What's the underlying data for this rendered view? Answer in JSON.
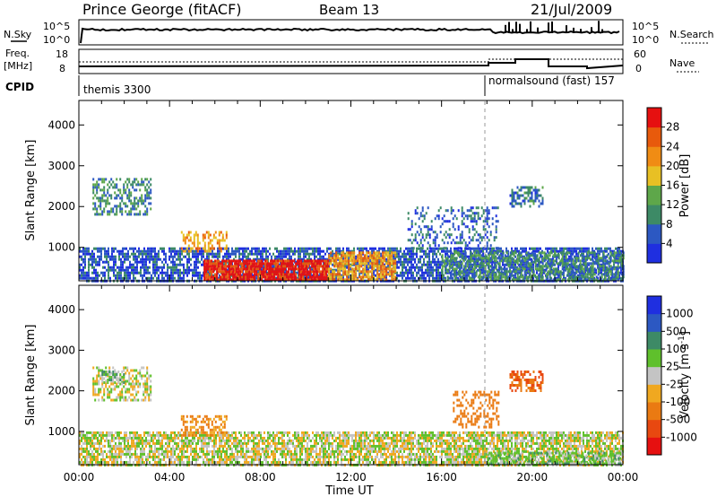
{
  "header": {
    "station": "Prince George (fitACF)",
    "beam": "Beam 13",
    "date": "21/Jul/2009"
  },
  "side_labels": {
    "nsky": "N.Sky",
    "nsearch": "N.Search",
    "freq_top": "Freq.",
    "freq_unit": "[MHz]",
    "nave": "Nave",
    "cpid": "CPID"
  },
  "strip_ticks": {
    "noise_left": [
      "10^5",
      "10^0"
    ],
    "noise_right": [
      "10^5",
      "10^0"
    ],
    "freq_left": [
      "18",
      "8"
    ],
    "nave_right": [
      "60",
      "0"
    ]
  },
  "cpid": {
    "segments": [
      {
        "label": "themis 3300",
        "start_hour": 0.0
      },
      {
        "label": "normalsound (fast) 157",
        "start_hour": 18.0
      }
    ]
  },
  "colors": {
    "power_scale": [
      "#1f2fe0",
      "#2c58c2",
      "#3d8a66",
      "#5ea74a",
      "#e8c024",
      "#f08c14",
      "#e85a0c",
      "#e61010"
    ],
    "velocity_scale": [
      "#1f2fe0",
      "#2c58c2",
      "#3d8a66",
      "#5fc02c",
      "#c4c4c4",
      "#f0a820",
      "#ea7a12",
      "#e84810",
      "#e61010"
    ]
  },
  "chart_data": [
    {
      "type": "heatmap",
      "name": "Power",
      "xlabel": "",
      "ylabel": "Slant Range [km]",
      "x_unit": "hours UT",
      "xlim": [
        0,
        24
      ],
      "ylim": [
        180,
        4600
      ],
      "yticks": [
        "1000",
        "2000",
        "3000",
        "4000"
      ],
      "colorbar": {
        "label": "Power [dB]",
        "ticks": [
          "4",
          "8",
          "12",
          "16",
          "20",
          "24",
          "28"
        ],
        "range": [
          0,
          30
        ]
      },
      "regions": [
        {
          "t": [
            0.0,
            24.0
          ],
          "r": [
            180,
            1000
          ],
          "level": 5,
          "density": 0.7
        },
        {
          "t": [
            5.5,
            11.0
          ],
          "r": [
            180,
            700
          ],
          "level": 28,
          "density": 0.9
        },
        {
          "t": [
            11.0,
            14.0
          ],
          "r": [
            200,
            900
          ],
          "level": 20,
          "density": 0.75
        },
        {
          "t": [
            0.6,
            3.2
          ],
          "r": [
            1800,
            2700
          ],
          "level": 9,
          "density": 0.5
        },
        {
          "t": [
            4.5,
            6.5
          ],
          "r": [
            900,
            1400
          ],
          "level": 20,
          "density": 0.5
        },
        {
          "t": [
            16.0,
            24.0
          ],
          "r": [
            200,
            900
          ],
          "level": 10,
          "density": 0.6
        },
        {
          "t": [
            19.0,
            20.5
          ],
          "r": [
            2000,
            2500
          ],
          "level": 8,
          "density": 0.5
        },
        {
          "t": [
            14.5,
            18.5
          ],
          "r": [
            1000,
            2000
          ],
          "level": 6,
          "density": 0.3
        }
      ]
    },
    {
      "type": "heatmap",
      "name": "Velocity",
      "xlabel": "Time UT",
      "ylabel": "Slant Range [km]",
      "x_unit": "hours UT",
      "xlim": [
        0,
        24
      ],
      "xticks": [
        "00:00",
        "04:00",
        "08:00",
        "12:00",
        "16:00",
        "20:00",
        "00:00"
      ],
      "ylim": [
        180,
        4600
      ],
      "yticks": [
        "1000",
        "2000",
        "3000",
        "4000"
      ],
      "colorbar": {
        "label": "Velocity [m s^-1]",
        "ticks": [
          "1000",
          "500",
          "100",
          "25",
          "-25",
          "-100",
          "-500",
          "-1000"
        ]
      },
      "regions": [
        {
          "t": [
            0.0,
            24.0
          ],
          "r": [
            180,
            1000
          ],
          "value": 0,
          "density": 0.75
        },
        {
          "t": [
            18.0,
            24.0
          ],
          "r": [
            180,
            500
          ],
          "value": 60,
          "density": 0.6
        },
        {
          "t": [
            0.6,
            3.2
          ],
          "r": [
            1800,
            2600
          ],
          "value": 0,
          "density": 0.5
        },
        {
          "t": [
            1.0,
            2.0
          ],
          "r": [
            2200,
            2500
          ],
          "value": 60,
          "density": 0.6
        },
        {
          "t": [
            4.5,
            6.5
          ],
          "r": [
            900,
            1400
          ],
          "value": -120,
          "density": 0.5
        },
        {
          "t": [
            16.5,
            18.5
          ],
          "r": [
            1100,
            2000
          ],
          "value": -200,
          "density": 0.4
        },
        {
          "t": [
            19.0,
            20.5
          ],
          "r": [
            2000,
            2500
          ],
          "value": -300,
          "density": 0.55
        }
      ]
    }
  ]
}
